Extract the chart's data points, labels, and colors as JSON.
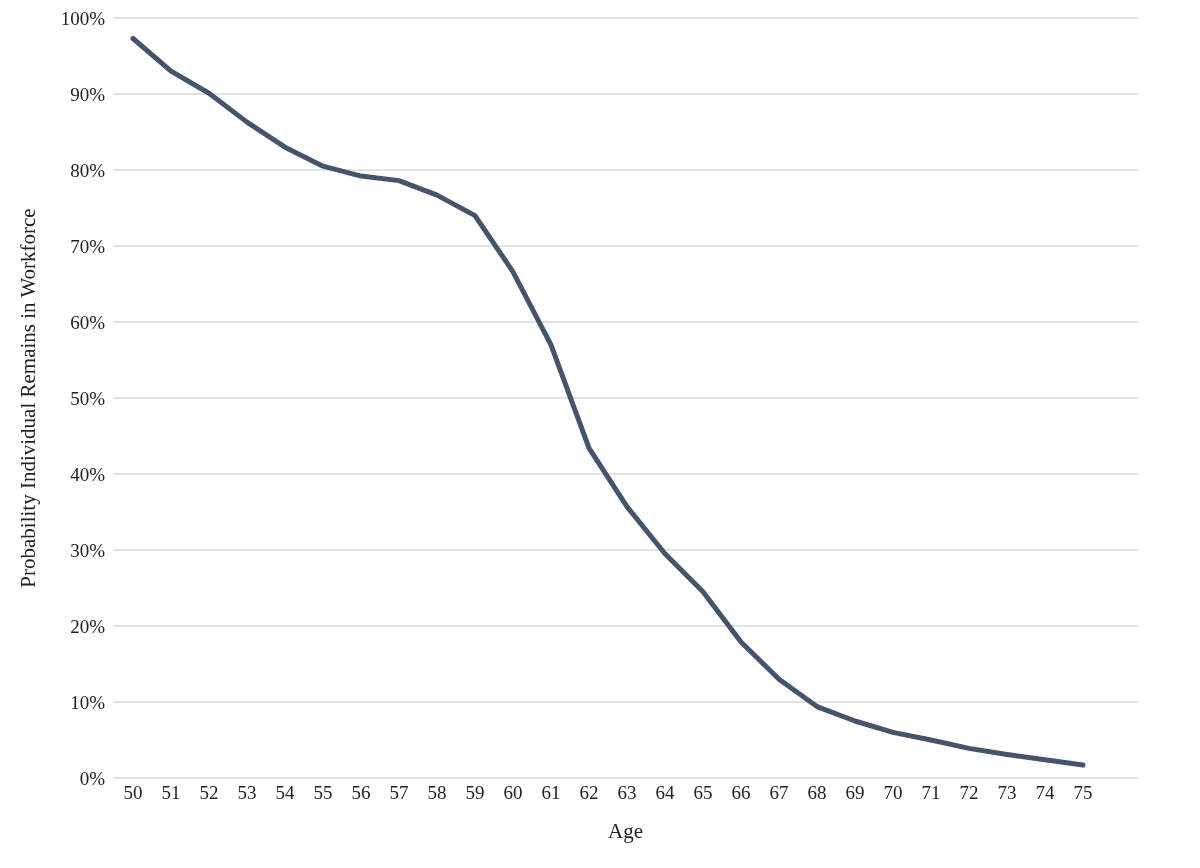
{
  "chart_data": {
    "type": "line",
    "xlabel": "Age",
    "ylabel": "Probability Individual Remains in Workforce",
    "categories": [
      "50",
      "51",
      "52",
      "53",
      "54",
      "55",
      "56",
      "57",
      "58",
      "59",
      "60",
      "61",
      "62",
      "63",
      "64",
      "65",
      "66",
      "67",
      "68",
      "69",
      "70",
      "71",
      "72",
      "73",
      "74",
      "75"
    ],
    "series": [
      {
        "color": "#44546a",
        "values": [
          97.3,
          93,
          90.1,
          86.3,
          83,
          80.5,
          79.2,
          78.6,
          76.7,
          74,
          66.6,
          57,
          43.4,
          35.7,
          29.5,
          24.5,
          17.9,
          13,
          9.4,
          7.5,
          6,
          5,
          3.9,
          3.1,
          2.4,
          1.7
        ]
      }
    ],
    "ylim": [
      0,
      100
    ],
    "yticks": [
      {
        "value": 0,
        "label": "0%"
      },
      {
        "value": 10,
        "label": "10%"
      },
      {
        "value": 20,
        "label": "20%"
      },
      {
        "value": 30,
        "label": "30%"
      },
      {
        "value": 40,
        "label": "40%"
      },
      {
        "value": 50,
        "label": "50%"
      },
      {
        "value": 60,
        "label": "60%"
      },
      {
        "value": 70,
        "label": "70%"
      },
      {
        "value": 80,
        "label": "80%"
      },
      {
        "value": 90,
        "label": "90%"
      },
      {
        "value": 100,
        "label": "100%"
      }
    ],
    "grid": "y",
    "marker": "none",
    "line_style": "solid"
  }
}
